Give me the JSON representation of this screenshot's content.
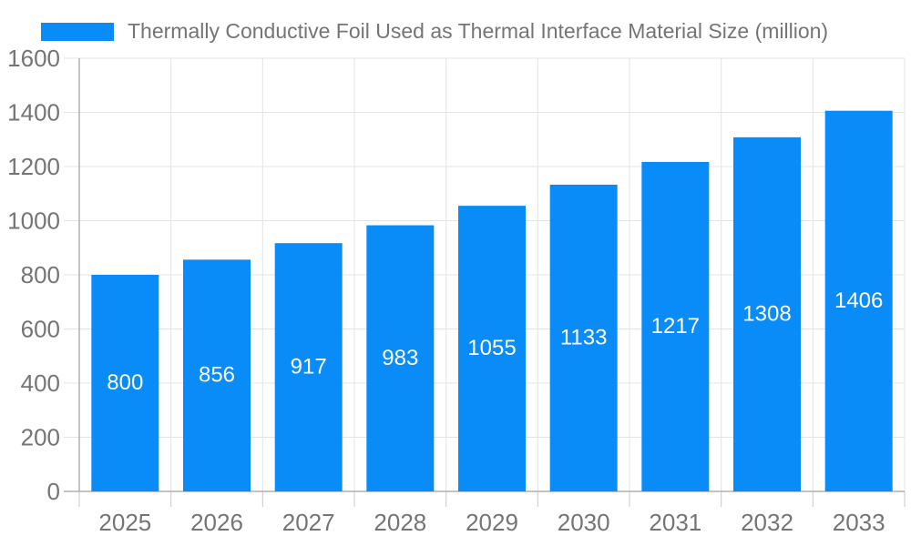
{
  "legend": {
    "label": "Thermally Conductive Foil Used as Thermal Interface Material Size (million)"
  },
  "chart_data": {
    "type": "bar",
    "title": "Thermally Conductive Foil Used as Thermal Interface Material Size (million)",
    "categories": [
      "2025",
      "2026",
      "2027",
      "2028",
      "2029",
      "2030",
      "2031",
      "2032",
      "2033"
    ],
    "values": [
      800,
      856,
      917,
      983,
      1055,
      1133,
      1217,
      1308,
      1406
    ],
    "series": [
      {
        "name": "Thermally Conductive Foil Used as Thermal Interface Material Size (million)",
        "values": [
          800,
          856,
          917,
          983,
          1055,
          1133,
          1217,
          1308,
          1406
        ]
      }
    ],
    "xlabel": "",
    "ylabel": "",
    "ylim": [
      0,
      1600
    ],
    "ytick_step": 200,
    "yticks": [
      0,
      200,
      400,
      600,
      800,
      1000,
      1200,
      1400,
      1600
    ],
    "grid": true,
    "legend_position": "top-left",
    "value_label_position": "inside-center"
  },
  "colors": {
    "bar": "#0a8cf8",
    "value_label": "#ffffff",
    "axis_line": "#b0b0b0",
    "grid_line": "#e4e4e4",
    "tick_line": "#c9c9c9",
    "tick_label": "#757575",
    "title_text": "#757575",
    "background": "#ffffff"
  }
}
